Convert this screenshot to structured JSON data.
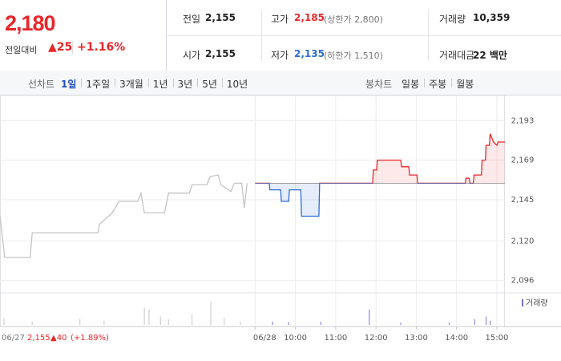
{
  "header": {
    "price": "2,180",
    "change_label": "전일대비",
    "change": "▲25",
    "change_pct": "+1.16%",
    "stats": [
      {
        "label": "전일",
        "value": "2,155"
      },
      {
        "label": "고가",
        "value": "2,185",
        "note": "(상한가 2,800)"
      },
      {
        "label": "거래량",
        "value": "10,359"
      },
      {
        "label": "시가",
        "value": "2,155"
      },
      {
        "label": "저가",
        "value": "2,135",
        "note": "(하한가 1,510)"
      },
      {
        "label": "거래대금",
        "value": "22 백만"
      }
    ]
  },
  "tabs": {
    "line_label": "선차트",
    "line_tabs": [
      "1일",
      "1주일",
      "3개월",
      "1년",
      "3년",
      "5년",
      "10년"
    ],
    "selected": 0,
    "candle_label": "봉차트",
    "candle_tabs": [
      "일봉",
      "주봉",
      "월봉"
    ]
  },
  "prev_day": {
    "date": "06/27",
    "close": "2,155",
    "change": "▲40",
    "pct": "(+1.89%)"
  },
  "chart_data": {
    "type": "line",
    "xlim": [
      -380,
      372
    ],
    "xticks": [
      {
        "value": 0,
        "label": "06/28"
      },
      {
        "value": 60,
        "label": "10:00"
      },
      {
        "value": 120,
        "label": "11:00"
      },
      {
        "value": 180,
        "label": "12:00"
      },
      {
        "value": 240,
        "label": "13:00"
      },
      {
        "value": 300,
        "label": "14:00"
      },
      {
        "value": 360,
        "label": "15:00"
      }
    ],
    "ylim": [
      2090,
      2198
    ],
    "yticks": [
      {
        "value": 2096,
        "label": "2,096"
      },
      {
        "value": 2120,
        "label": "2,120"
      },
      {
        "value": 2145,
        "label": "2,145"
      },
      {
        "value": 2169,
        "label": "2,169"
      },
      {
        "value": 2193,
        "label": "2,193"
      }
    ],
    "grid": true,
    "baseline": 2155,
    "series": [
      {
        "color": "#c4c4c4",
        "x": [
          -380,
          -373,
          -335,
          -332,
          -234,
          -232,
          -213,
          -203,
          -175,
          -170,
          -165,
          -135,
          -129,
          -98,
          -94,
          -72,
          -67,
          -55,
          -51,
          -36,
          -31,
          -20,
          -16,
          -12
        ],
        "values": [
          2135,
          2110,
          2110,
          2125,
          2125,
          2130,
          2137,
          2144,
          2144,
          2149,
          2137,
          2137,
          2149,
          2149,
          2154,
          2154,
          2159,
          2160,
          2154,
          2150,
          2155,
          2155,
          2140,
          2155
        ]
      },
      {
        "color_up": "#e8262a",
        "color_down": "#2f6cd7",
        "x": [
          0,
          21,
          22,
          38,
          39,
          50,
          51,
          68,
          69,
          95,
          96,
          175,
          176,
          181,
          182,
          217,
          218,
          229,
          230,
          241,
          242,
          313,
          314,
          319,
          320,
          325,
          326,
          337,
          338,
          343,
          344,
          349,
          350,
          355,
          360,
          362,
          372
        ],
        "values": [
          2155,
          2155,
          2151,
          2151,
          2144,
          2144,
          2151,
          2151,
          2135,
          2135,
          2155,
          2155,
          2163,
          2163,
          2169,
          2169,
          2165,
          2165,
          2160,
          2160,
          2155,
          2155,
          2158,
          2158,
          2155,
          2155,
          2160,
          2160,
          2169,
          2169,
          2178,
          2178,
          2185,
          2180,
          2178,
          2180,
          2180
        ]
      }
    ],
    "volume": {
      "label": "거래량",
      "legend_color": "#7b6fd0",
      "vlim": [
        0,
        1000
      ],
      "series": [
        {
          "color": "#cfcfcf",
          "x": [
            -374,
            -332,
            -261,
            -225,
            -165,
            -158,
            -141,
            -129,
            -94,
            -66,
            -46,
            -22
          ],
          "values": [
            250,
            120,
            200,
            150,
            620,
            550,
            300,
            200,
            380,
            820,
            250,
            120
          ]
        },
        {
          "color": "#8f88dc",
          "x": [
            26,
            50,
            98,
            170,
            217,
            289,
            327,
            344,
            350
          ],
          "values": [
            120,
            100,
            120,
            550,
            80,
            80,
            200,
            300,
            150
          ]
        }
      ]
    }
  }
}
